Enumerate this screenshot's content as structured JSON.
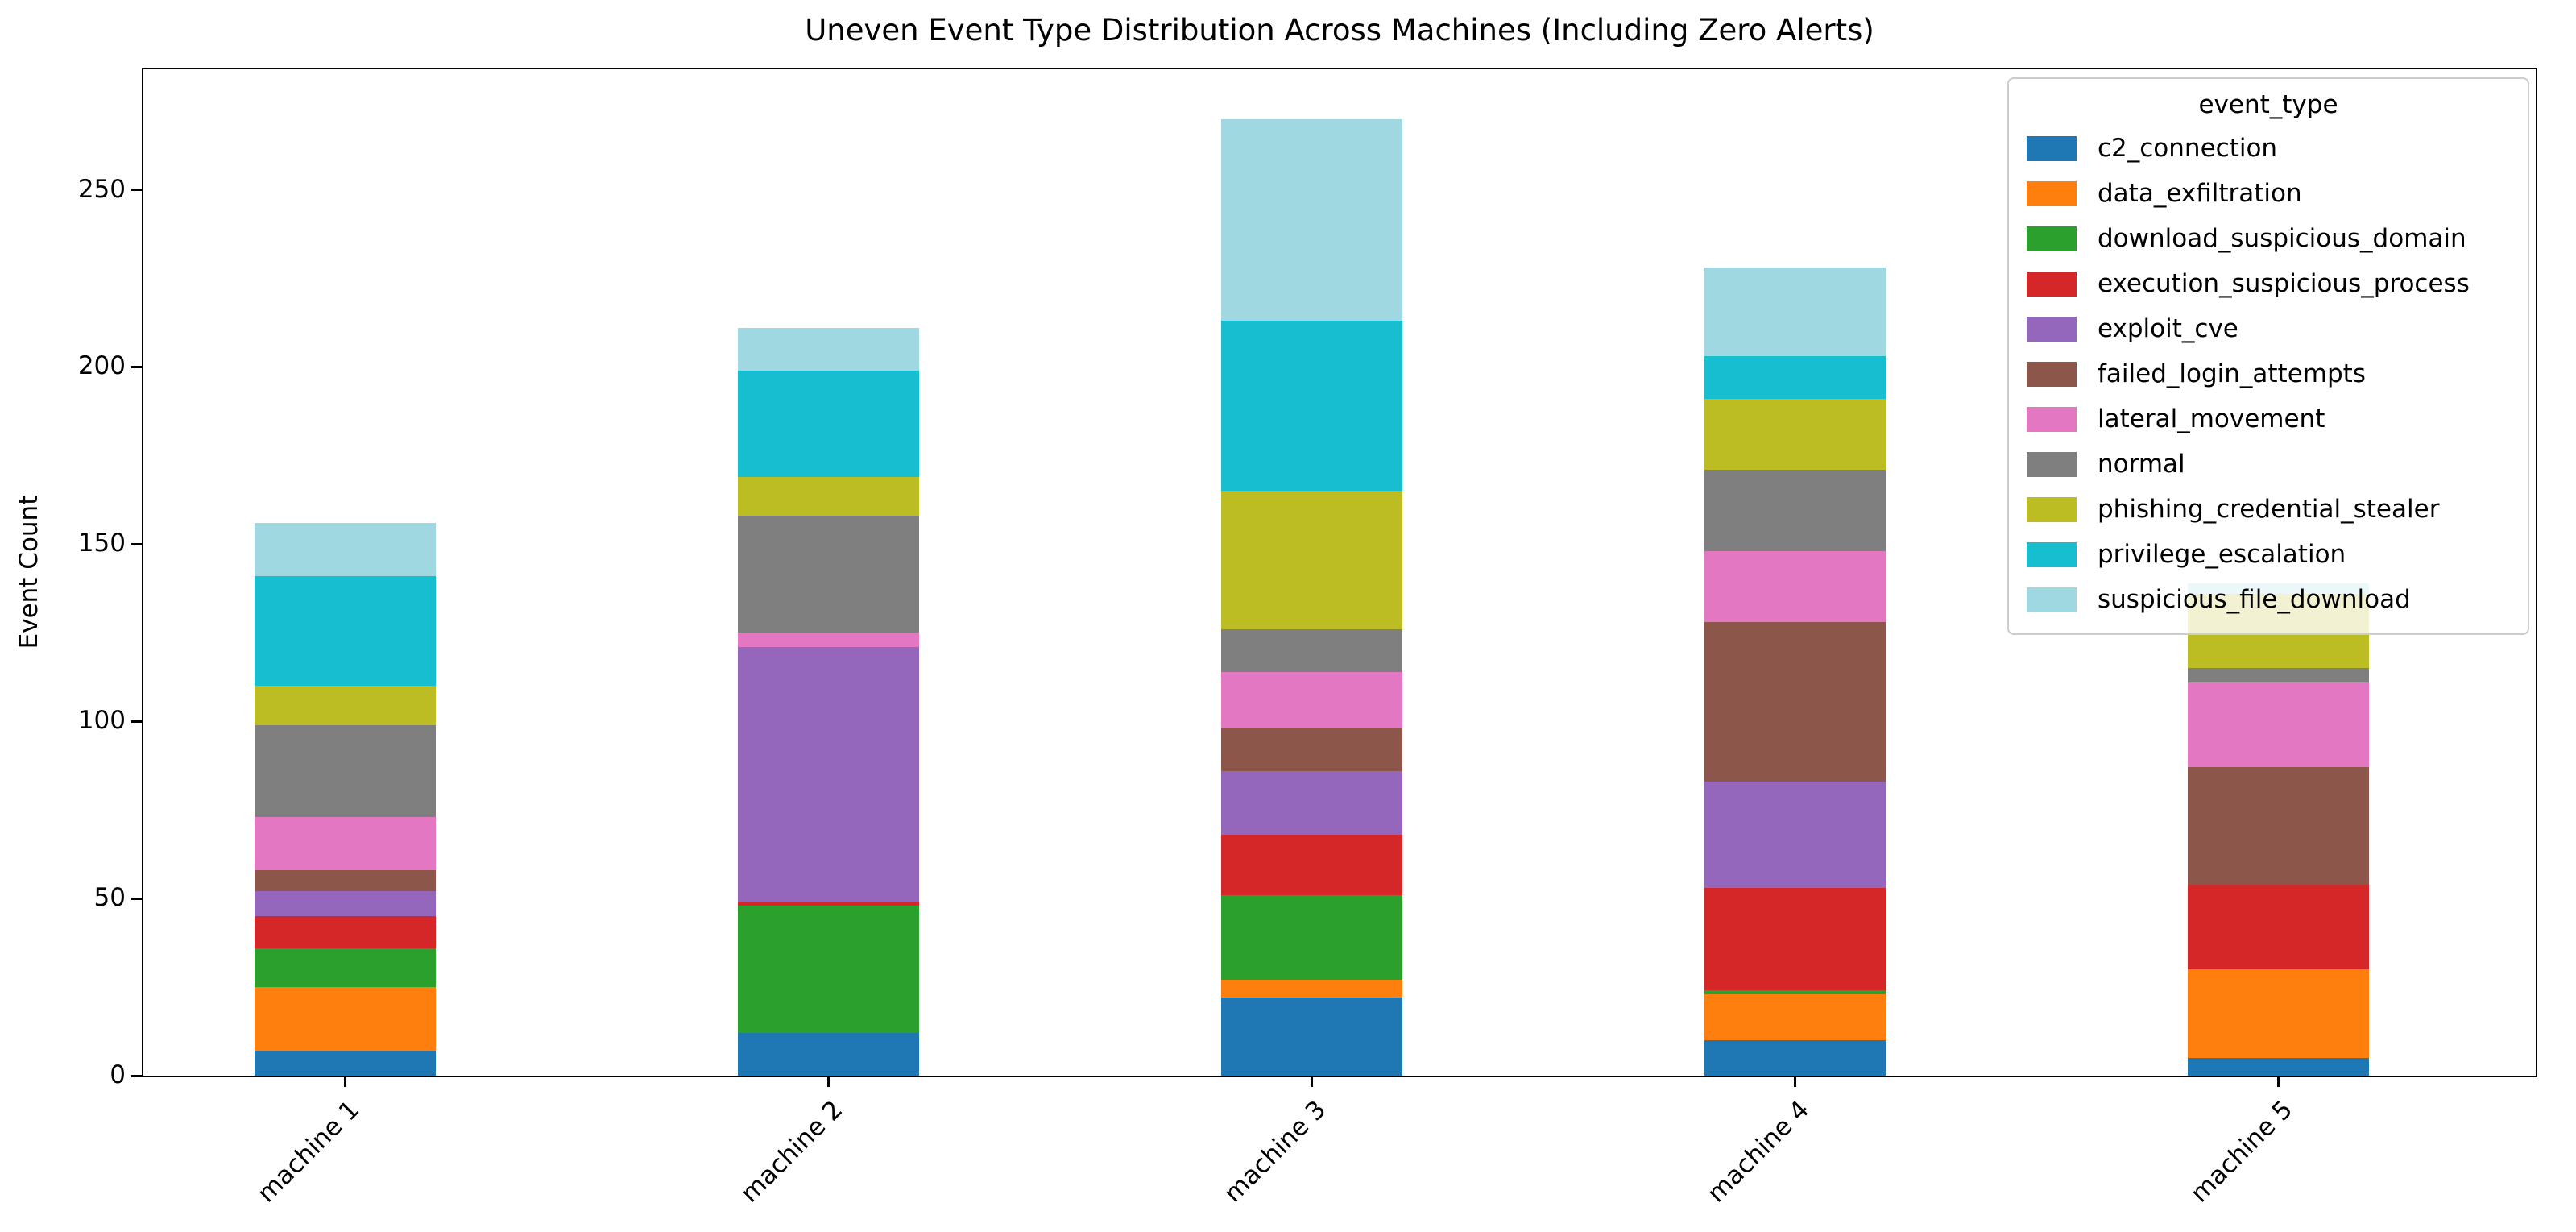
{
  "figure": {
    "title": "Uneven Event Type Distribution Across Machines (Including Zero Alerts)",
    "ylabel": "Event Count"
  },
  "legend": {
    "title": "event_type"
  },
  "chart_data": {
    "type": "bar",
    "stacked": true,
    "title": "Uneven Event Type Distribution Across Machines (Including Zero Alerts)",
    "xlabel": "",
    "ylabel": "Event Count",
    "categories": [
      "machine 1",
      "machine 2",
      "machine 3",
      "machine 4",
      "machine 5"
    ],
    "series": [
      {
        "name": "c2_connection",
        "color": "#1f77b4",
        "values": [
          7,
          12,
          22,
          10,
          5
        ]
      },
      {
        "name": "data_exfiltration",
        "color": "#ff7f0e",
        "values": [
          18,
          0,
          5,
          13,
          25
        ]
      },
      {
        "name": "download_suspicious_domain",
        "color": "#2ca02c",
        "values": [
          11,
          36,
          24,
          1,
          0
        ]
      },
      {
        "name": "execution_suspicious_process",
        "color": "#d62728",
        "values": [
          9,
          1,
          17,
          29,
          24
        ]
      },
      {
        "name": "exploit_cve",
        "color": "#9467bd",
        "values": [
          7,
          72,
          18,
          30,
          0
        ]
      },
      {
        "name": "failed_login_attempts",
        "color": "#8c564b",
        "values": [
          6,
          0,
          12,
          45,
          33
        ]
      },
      {
        "name": "lateral_movement",
        "color": "#e377c2",
        "values": [
          15,
          4,
          16,
          20,
          24
        ]
      },
      {
        "name": "normal",
        "color": "#7f7f7f",
        "values": [
          26,
          33,
          12,
          23,
          4
        ]
      },
      {
        "name": "phishing_credential_stealer",
        "color": "#bcbd22",
        "values": [
          11,
          11,
          39,
          20,
          21
        ]
      },
      {
        "name": "privilege_escalation",
        "color": "#17becf",
        "values": [
          31,
          30,
          48,
          12,
          0
        ]
      },
      {
        "name": "suspicious_file_download",
        "color": "#a0d8e2",
        "values": [
          15,
          12,
          57,
          25,
          3
        ]
      }
    ],
    "totals": [
      156,
      211,
      270,
      228,
      139
    ],
    "yticks": [
      0,
      50,
      100,
      150,
      200,
      250
    ],
    "ylim": [
      0,
      284
    ],
    "xtick_rotation": 45,
    "grid": false,
    "legend_title": "event_type",
    "legend_position": "upper right"
  }
}
